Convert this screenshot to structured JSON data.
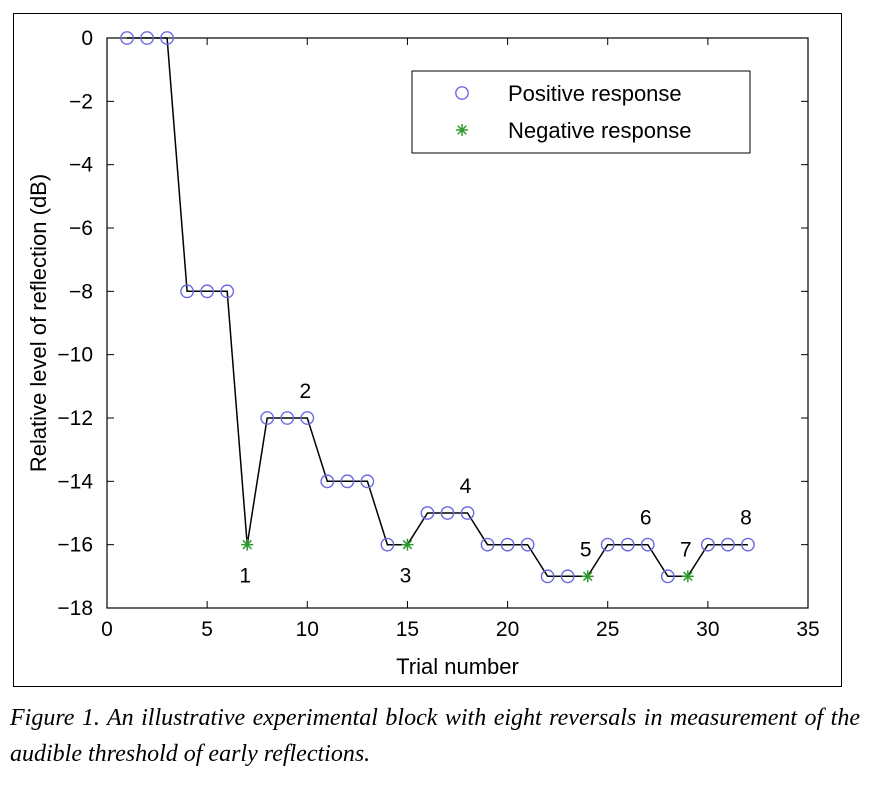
{
  "chart_data": {
    "type": "line",
    "title": "",
    "xlabel": "Trial number",
    "ylabel": "Relative level of reflection (dB)",
    "xlim": [
      0,
      35
    ],
    "ylim": [
      -18,
      0
    ],
    "xticks": [
      0,
      5,
      10,
      15,
      20,
      25,
      30,
      35
    ],
    "yticks": [
      0,
      -2,
      -4,
      -6,
      -8,
      -10,
      -12,
      -14,
      -16,
      -18
    ],
    "grid": false,
    "legend_position": "top-right",
    "x": [
      1,
      2,
      3,
      4,
      5,
      6,
      7,
      8,
      9,
      10,
      11,
      12,
      13,
      14,
      15,
      16,
      17,
      18,
      19,
      20,
      21,
      22,
      23,
      24,
      25,
      26,
      27,
      28,
      29,
      30,
      31,
      32
    ],
    "y": [
      0,
      0,
      0,
      -8,
      -8,
      -8,
      -16,
      -12,
      -12,
      -12,
      -14,
      -14,
      -14,
      -16,
      -16,
      -15,
      -15,
      -15,
      -16,
      -16,
      -16,
      -17,
      -17,
      -17,
      -16,
      -16,
      -16,
      -17,
      -17,
      -16,
      -16,
      -16
    ],
    "series": [
      {
        "name": "Positive response",
        "marker": "circle",
        "color": "#6a6ae0",
        "x": [
          1,
          2,
          3,
          4,
          5,
          6,
          8,
          9,
          10,
          11,
          12,
          13,
          14,
          16,
          17,
          18,
          19,
          20,
          21,
          22,
          23,
          25,
          26,
          27,
          28,
          30,
          31,
          32
        ],
        "y": [
          0,
          0,
          0,
          -8,
          -8,
          -8,
          -12,
          -12,
          -12,
          -14,
          -14,
          -14,
          -16,
          -15,
          -15,
          -15,
          -16,
          -16,
          -16,
          -17,
          -17,
          -16,
          -16,
          -16,
          -17,
          -16,
          -16,
          -16
        ]
      },
      {
        "name": "Negative response",
        "marker": "asterisk",
        "color": "#2e9a2e",
        "x": [
          7,
          15,
          24,
          29
        ],
        "y": [
          -16,
          -16,
          -17,
          -17
        ]
      }
    ],
    "line_color": "#000000",
    "annotations": [
      {
        "text": "1",
        "x": 7,
        "y": -16,
        "pos": "below"
      },
      {
        "text": "2",
        "x": 10,
        "y": -12,
        "pos": "above"
      },
      {
        "text": "3",
        "x": 15,
        "y": -16,
        "pos": "below"
      },
      {
        "text": "4",
        "x": 18,
        "y": -15,
        "pos": "above"
      },
      {
        "text": "5",
        "x": 24,
        "y": -17,
        "pos": "above"
      },
      {
        "text": "6",
        "x": 27,
        "y": -16,
        "pos": "above"
      },
      {
        "text": "7",
        "x": 29,
        "y": -17,
        "pos": "above"
      },
      {
        "text": "8",
        "x": 32,
        "y": -16,
        "pos": "above"
      }
    ]
  },
  "caption": {
    "text": "Figure 1. An illustrative experimental block with eight reversals in measurement of the audible threshold of early reflections."
  }
}
